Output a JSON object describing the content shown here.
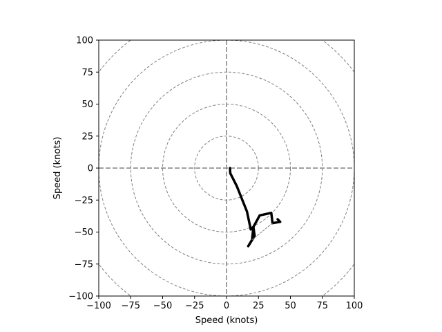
{
  "chart_data": {
    "type": "line",
    "title": "",
    "xlabel": "Speed (knots)",
    "ylabel": "Speed (knots)",
    "xlim": [
      -100,
      100
    ],
    "ylim": [
      -100,
      100
    ],
    "xticks": [
      -100,
      -75,
      -50,
      -25,
      0,
      25,
      50,
      75,
      100
    ],
    "yticks": [
      -100,
      -75,
      -50,
      -25,
      0,
      25,
      50,
      75,
      100
    ],
    "xtick_labels": [
      "−100",
      "−75",
      "−50",
      "−25",
      "0",
      "25",
      "50",
      "75",
      "100"
    ],
    "ytick_labels": [
      "−100",
      "−75",
      "−50",
      "−25",
      "0",
      "25",
      "50",
      "75",
      "100"
    ],
    "range_rings": [
      25,
      50,
      75,
      100,
      125
    ],
    "grid": true,
    "legend": false,
    "series": [
      {
        "color": "#000000",
        "points": [
          [
            2.7,
            0
          ],
          [
            2.9,
            -4
          ],
          [
            8,
            -14
          ],
          [
            12,
            -24
          ],
          [
            16,
            -34
          ],
          [
            19,
            -48
          ],
          [
            21,
            -46
          ],
          [
            20,
            -56
          ],
          [
            17,
            -61
          ],
          [
            22,
            -53
          ],
          [
            21,
            -46
          ],
          [
            26,
            -37
          ],
          [
            35,
            -35
          ],
          [
            36,
            -43
          ],
          [
            42,
            -42
          ],
          [
            40,
            -40
          ]
        ]
      },
      {
        "color": "#808080",
        "points": [
          [
            20,
            -56
          ],
          [
            36,
            -43
          ]
        ]
      }
    ]
  }
}
